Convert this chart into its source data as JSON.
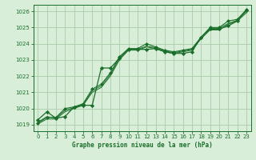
{
  "bg_color": "#d8eed8",
  "grid_color": "#aaccaa",
  "line_color": "#1a6e2a",
  "marker_color": "#1a6e2a",
  "title": "Graphe pression niveau de la mer (hPa)",
  "xlim": [
    -0.5,
    23.5
  ],
  "ylim": [
    1018.6,
    1026.4
  ],
  "yticks": [
    1019,
    1020,
    1021,
    1022,
    1023,
    1024,
    1025,
    1026
  ],
  "xticks": [
    0,
    1,
    2,
    3,
    4,
    5,
    6,
    7,
    8,
    9,
    10,
    11,
    12,
    13,
    14,
    15,
    16,
    17,
    18,
    19,
    20,
    21,
    22,
    23
  ],
  "series1": [
    1019.3,
    1019.8,
    1019.4,
    1019.5,
    1020.1,
    1020.2,
    1020.2,
    1022.5,
    1022.5,
    1023.1,
    1023.65,
    1023.65,
    1023.65,
    1023.7,
    1023.5,
    1023.4,
    1023.4,
    1023.5,
    1024.4,
    1024.9,
    1024.9,
    1025.1,
    1025.4,
    1026.05
  ],
  "series2": [
    1019.1,
    1019.45,
    1019.45,
    1020.0,
    1020.1,
    1020.3,
    1021.2,
    1021.5,
    1022.2,
    1023.2,
    1023.7,
    1023.7,
    1024.0,
    1023.8,
    1023.6,
    1023.5,
    1023.6,
    1023.7,
    1024.4,
    1025.0,
    1025.0,
    1025.4,
    1025.5,
    1026.1
  ],
  "series3": [
    1019.15,
    1019.5,
    1019.4,
    1019.9,
    1020.05,
    1020.25,
    1021.1,
    1021.4,
    1022.1,
    1023.1,
    1023.65,
    1023.65,
    1023.85,
    1023.75,
    1023.55,
    1023.45,
    1023.55,
    1023.65,
    1024.35,
    1024.95,
    1024.95,
    1025.25,
    1025.45,
    1026.0
  ],
  "series4": [
    1019.05,
    1019.35,
    1019.35,
    1019.8,
    1020.0,
    1020.2,
    1021.0,
    1021.3,
    1022.0,
    1023.0,
    1023.6,
    1023.6,
    1023.8,
    1023.7,
    1023.5,
    1023.4,
    1023.5,
    1023.6,
    1024.3,
    1024.85,
    1024.85,
    1025.2,
    1025.4,
    1025.9
  ]
}
